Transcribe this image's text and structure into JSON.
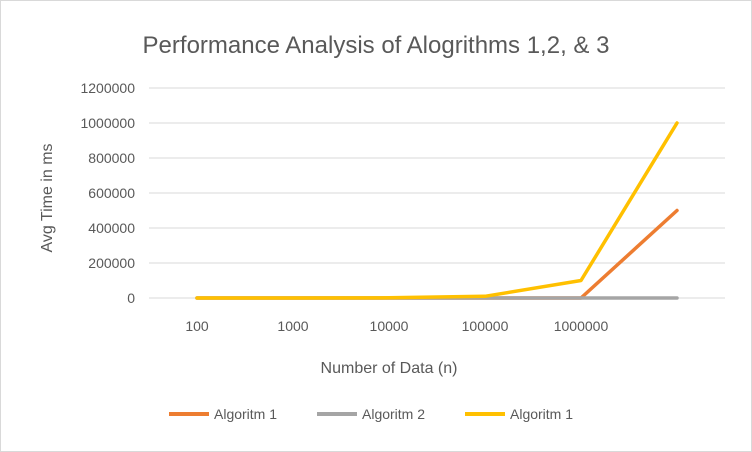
{
  "chart_data": {
    "type": "line",
    "title": "Performance Analysis of Alogrithms 1,2, & 3",
    "xlabel": "Number of Data (n)",
    "ylabel": "Avg Time in ms",
    "categories": [
      "100",
      "1000",
      "10000",
      "100000",
      "1000000",
      ""
    ],
    "ylim": [
      0,
      1200000
    ],
    "yticks": [
      0,
      200000,
      400000,
      600000,
      800000,
      1000000,
      1200000
    ],
    "yticklabels": [
      "0",
      "200000",
      "400000",
      "600000",
      "800000",
      "1000000",
      "1200000"
    ],
    "grid": true,
    "legend_position": "bottom",
    "series": [
      {
        "name": "Algoritm 1",
        "color": "#ED7D31",
        "values": [
          0,
          0,
          0,
          0,
          0,
          500000
        ]
      },
      {
        "name": "Algoritm 2",
        "color": "#A5A5A5",
        "values": [
          0,
          0,
          0,
          0,
          0,
          0
        ]
      },
      {
        "name": "Algoritm 1",
        "color": "#FFC000",
        "values": [
          0,
          0,
          1000,
          10000,
          100000,
          1000000
        ]
      }
    ]
  }
}
